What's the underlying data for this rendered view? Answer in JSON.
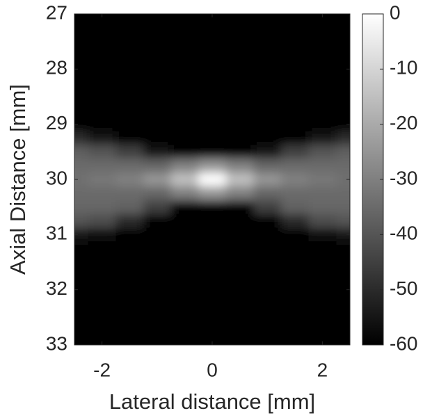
{
  "chart_data": {
    "type": "heatmap",
    "x_label": "Lateral distance [mm]",
    "y_label": "Axial Distance [mm]",
    "x": [
      -2.5,
      -2,
      -1.5,
      -1,
      -0.5,
      0,
      0.5,
      1,
      1.5,
      2,
      2.5
    ],
    "y": [
      27,
      27.25,
      27.5,
      27.75,
      28,
      28.25,
      28.5,
      28.75,
      29,
      29.25,
      29.5,
      29.75,
      30,
      30.25,
      30.5,
      30.75,
      31,
      31.25,
      31.5,
      31.75,
      32,
      32.25,
      32.5,
      32.75,
      33
    ],
    "z": [
      [
        -60,
        -60,
        -60,
        -60,
        -60,
        -60,
        -60,
        -60,
        -60,
        -60,
        -60
      ],
      [
        -60,
        -60,
        -60,
        -60,
        -60,
        -60,
        -60,
        -60,
        -60,
        -60,
        -60
      ],
      [
        -60,
        -60,
        -60,
        -60,
        -60,
        -60,
        -60,
        -60,
        -60,
        -60,
        -60
      ],
      [
        -60,
        -60,
        -60,
        -60,
        -60,
        -60,
        -60,
        -60,
        -60,
        -60,
        -60
      ],
      [
        -60,
        -60,
        -60,
        -60,
        -60,
        -60,
        -60,
        -60,
        -60,
        -60,
        -60
      ],
      [
        -60,
        -60,
        -60,
        -60,
        -60,
        -60,
        -60,
        -60,
        -60,
        -60,
        -60
      ],
      [
        -60,
        -60,
        -60,
        -60,
        -60,
        -60,
        -60,
        -60,
        -60,
        -60,
        -60
      ],
      [
        -60,
        -60,
        -60,
        -60,
        -60,
        -60,
        -60,
        -60,
        -60,
        -60,
        -60
      ],
      [
        -60,
        -60,
        -60,
        -60,
        -60,
        -60,
        -60,
        -60,
        -60,
        -60,
        -60
      ],
      [
        -50,
        -55,
        -60,
        -60,
        -60,
        -60,
        -60,
        -60,
        -60,
        -55,
        -50
      ],
      [
        -38,
        -40,
        -45,
        -55,
        -60,
        -60,
        -60,
        -55,
        -45,
        -40,
        -38
      ],
      [
        -35,
        -35,
        -35,
        -36,
        -30,
        -25,
        -30,
        -36,
        -35,
        -35,
        -35
      ],
      [
        -34,
        -32,
        -30,
        -25,
        -15,
        0,
        -15,
        -25,
        -30,
        -32,
        -34
      ],
      [
        -35,
        -35,
        -35,
        -36,
        -30,
        -25,
        -30,
        -36,
        -35,
        -35,
        -35
      ],
      [
        -36,
        -36,
        -37,
        -45,
        -60,
        -60,
        -60,
        -45,
        -37,
        -36,
        -36
      ],
      [
        -40,
        -42,
        -50,
        -60,
        -60,
        -60,
        -60,
        -60,
        -50,
        -42,
        -40
      ],
      [
        -55,
        -58,
        -60,
        -60,
        -60,
        -60,
        -60,
        -60,
        -60,
        -58,
        -55
      ],
      [
        -60,
        -60,
        -60,
        -60,
        -60,
        -60,
        -60,
        -60,
        -60,
        -60,
        -60
      ],
      [
        -60,
        -60,
        -60,
        -60,
        -60,
        -60,
        -60,
        -60,
        -60,
        -60,
        -60
      ],
      [
        -60,
        -60,
        -60,
        -60,
        -60,
        -60,
        -60,
        -60,
        -60,
        -60,
        -60
      ],
      [
        -60,
        -60,
        -60,
        -60,
        -60,
        -60,
        -60,
        -60,
        -60,
        -60,
        -60
      ],
      [
        -60,
        -60,
        -60,
        -60,
        -60,
        -60,
        -60,
        -60,
        -60,
        -60,
        -60
      ],
      [
        -60,
        -60,
        -60,
        -60,
        -60,
        -60,
        -60,
        -60,
        -60,
        -60,
        -60
      ],
      [
        -60,
        -60,
        -60,
        -60,
        -60,
        -60,
        -60,
        -60,
        -60,
        -60,
        -60
      ],
      [
        -60,
        -60,
        -60,
        -60,
        -60,
        -60,
        -60,
        -60,
        -60,
        -60,
        -60
      ]
    ],
    "xlim": [
      -2.5,
      2.5
    ],
    "xticks": [
      -2,
      0,
      2
    ],
    "ylim": [
      27,
      33
    ],
    "yticks": [
      27,
      28,
      29,
      30,
      31,
      32,
      33
    ],
    "y_reversed": true,
    "clim": [
      -60,
      0
    ],
    "cticks": [
      0,
      -10,
      -20,
      -30,
      -40,
      -50,
      -60
    ],
    "colormap": [
      "#000000",
      "#ffffff"
    ]
  }
}
